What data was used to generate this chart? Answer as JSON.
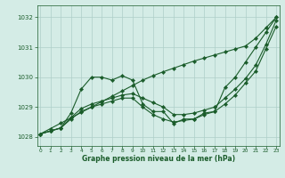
{
  "xlabel": "Graphe pression niveau de la mer (hPa)",
  "background_color": "#d4ece6",
  "grid_color": "#aecfc8",
  "line_color": "#1a5c2a",
  "ylim": [
    1027.7,
    1032.4
  ],
  "xlim": [
    -0.3,
    23.3
  ],
  "x_ticks": [
    0,
    1,
    2,
    3,
    4,
    5,
    6,
    7,
    8,
    9,
    10,
    11,
    12,
    13,
    14,
    15,
    16,
    17,
    18,
    19,
    20,
    21,
    22,
    23
  ],
  "y_ticks": [
    1028,
    1029,
    1030,
    1031,
    1032
  ],
  "series": {
    "wiggly": [
      1028.1,
      1028.2,
      1028.3,
      1028.8,
      1029.6,
      1030.0,
      1030.0,
      1029.9,
      1030.05,
      1029.9,
      1029.1,
      1028.85,
      1028.85,
      1028.45,
      1028.6,
      1028.6,
      1028.8,
      1028.85,
      1029.65,
      1030.0,
      1030.5,
      1031.0,
      1031.5,
      1032.0
    ],
    "straight_top": [
      1028.1,
      1028.28,
      1028.46,
      1028.64,
      1028.82,
      1029.0,
      1029.18,
      1029.36,
      1029.54,
      1029.72,
      1029.9,
      1030.05,
      1030.18,
      1030.3,
      1030.42,
      1030.54,
      1030.64,
      1030.74,
      1030.84,
      1030.94,
      1031.04,
      1031.3,
      1031.65,
      1032.0
    ],
    "mid_upper": [
      1028.1,
      1028.2,
      1028.3,
      1028.65,
      1028.95,
      1029.1,
      1029.2,
      1029.3,
      1029.4,
      1029.45,
      1029.3,
      1029.15,
      1029.0,
      1028.75,
      1028.75,
      1028.8,
      1028.9,
      1029.0,
      1029.3,
      1029.6,
      1029.95,
      1030.4,
      1031.1,
      1031.9
    ],
    "mid_lower": [
      1028.1,
      1028.2,
      1028.3,
      1028.6,
      1028.85,
      1029.0,
      1029.1,
      1029.2,
      1029.3,
      1029.3,
      1029.0,
      1028.75,
      1028.6,
      1028.5,
      1028.55,
      1028.6,
      1028.75,
      1028.85,
      1029.1,
      1029.4,
      1029.8,
      1030.2,
      1030.95,
      1031.7
    ]
  }
}
